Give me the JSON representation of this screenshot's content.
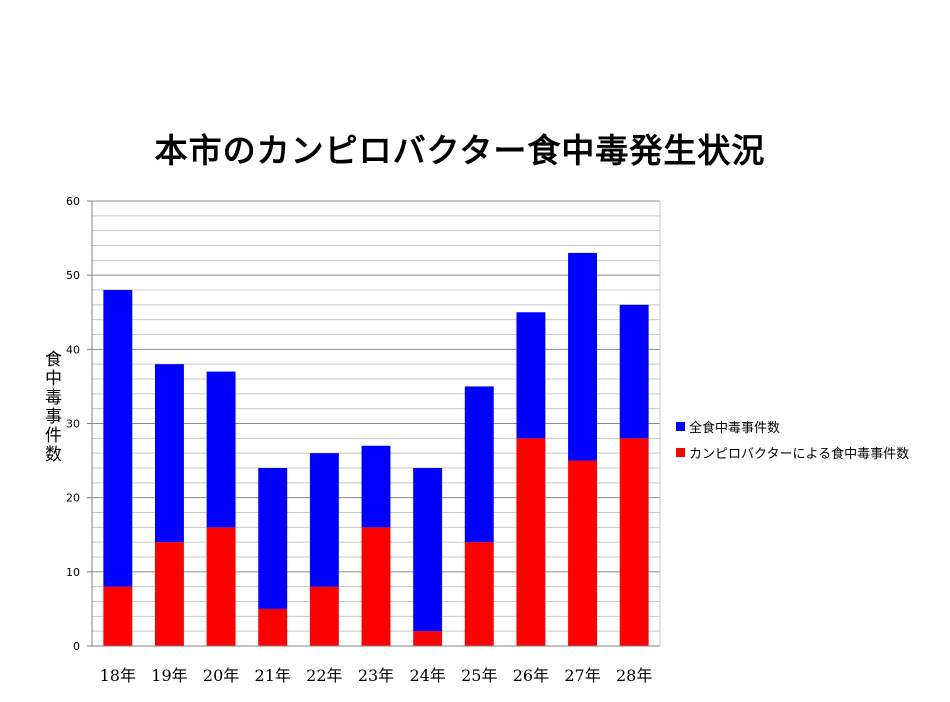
{
  "chart_data": {
    "type": "bar",
    "stacked": true,
    "title": "本市のカンピロバクター食中毒発生状況",
    "ylabel": "食中毒事件数",
    "xlabel": "",
    "categories": [
      "18年",
      "19年",
      "20年",
      "21年",
      "22年",
      "23年",
      "24年",
      "25年",
      "26年",
      "27年",
      "28年"
    ],
    "ylim": [
      0,
      60
    ],
    "yticks": [
      0,
      10,
      20,
      30,
      40,
      50,
      60
    ],
    "grid": true,
    "legend_position": "right",
    "total_label": "全食中毒事件数",
    "series": [
      {
        "name": "カンピロバクターによる食中毒事件数",
        "color": "#ff0000",
        "values": [
          8,
          14,
          16,
          5,
          8,
          16,
          2,
          14,
          28,
          25,
          28
        ]
      },
      {
        "name": "全食中毒事件数",
        "color": "#0000ff",
        "values": [
          40,
          24,
          21,
          19,
          18,
          11,
          22,
          21,
          17,
          28,
          18
        ]
      }
    ],
    "totals": [
      48,
      38,
      37,
      24,
      26,
      27,
      24,
      35,
      45,
      53,
      46
    ]
  },
  "legend": [
    {
      "label": "全食中毒事件数",
      "color": "#0000ff"
    },
    {
      "label": "カンピロバクターによる食中毒事件数",
      "color": "#ff0000"
    }
  ]
}
